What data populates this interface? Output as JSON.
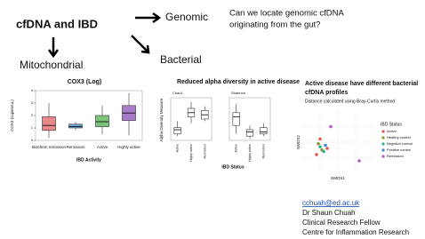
{
  "header": {
    "title": "cfDNA and IBD",
    "genomic": "Genomic",
    "question": [
      "Can we locate genomic cfDNA",
      "originating from the gut?"
    ],
    "mitochondrial": "Mitochondrial",
    "bacterial": "Bacterial"
  },
  "contact": [
    "cchuah@ed.ac.uk",
    "Dr Shaun Chuah",
    "Clinical Research Fellow",
    "Centre for Inflammation Research"
  ],
  "chart_data": [
    {
      "type": "box",
      "title": "COX3 (Log)",
      "y_label": "COX3 (copies/uL)",
      "x_label": "IBD Activity",
      "ylim": [
        0,
        4
      ],
      "yticks": [
        0,
        1,
        2,
        3,
        4
      ],
      "panels": [
        {
          "categories": [
            "Biochem remission",
            "Remission",
            "Active",
            "Highly active"
          ],
          "colors": [
            "#e8888a",
            "#6fa4d8",
            "#7cc47c",
            "#a77cc9"
          ],
          "boxes": [
            {
              "low": 0.2,
              "q1": 0.8,
              "median": 1.2,
              "q3": 1.9,
              "high": 3.0
            },
            {
              "low": 0.8,
              "q1": 1.0,
              "median": 1.1,
              "q3": 1.3,
              "high": 1.5
            },
            {
              "low": 0.5,
              "q1": 1.1,
              "median": 1.5,
              "q3": 2.0,
              "high": 2.8
            },
            {
              "low": 0.4,
              "q1": 1.6,
              "median": 2.2,
              "q3": 2.8,
              "high": 3.8
            }
          ]
        }
      ]
    },
    {
      "type": "box",
      "title": "Reduced alpha diversity in active disease",
      "y_label": "Alpha Diversity Measure",
      "x_label": "IBD Status",
      "ylim": [
        0,
        10
      ],
      "panels": [
        {
          "title": "Chao1",
          "categories": [
            "Active",
            "Highly active",
            "Remission"
          ],
          "colors": [
            "#ffffff",
            "#ffffff",
            "#ffffff"
          ],
          "boxes": [
            {
              "low": 1.0,
              "q1": 1.5,
              "median": 2.5,
              "q3": 3.0,
              "high": 4.5
            },
            {
              "low": 4.0,
              "q1": 5.5,
              "median": 6.5,
              "q3": 7.5,
              "high": 9.0
            },
            {
              "low": 4.5,
              "q1": 5.0,
              "median": 6.0,
              "q3": 7.0,
              "high": 8.0
            }
          ]
        },
        {
          "title": "Shannon",
          "categories": [
            "Active",
            "Highly active",
            "Remission"
          ],
          "colors": [
            "#ffffff",
            "#ffffff",
            "#ffffff"
          ],
          "boxes": [
            {
              "low": 1.5,
              "q1": 3.5,
              "median": 5.5,
              "q3": 6.5,
              "high": 8.5
            },
            {
              "low": 0.5,
              "q1": 1.0,
              "median": 2.0,
              "q3": 2.5,
              "high": 3.5
            },
            {
              "low": 1.0,
              "q1": 1.5,
              "median": 2.0,
              "q3": 3.0,
              "high": 4.0
            }
          ]
        }
      ]
    },
    {
      "type": "scatter",
      "title": [
        "Active disease have different bacterial",
        "cfDNA profiles"
      ],
      "subtitle": "Distance calculated using Bray-Curtis method",
      "x_label": "NMDS1",
      "y_label": "NMDS2",
      "legend_title": "IBD Status",
      "xlim": [
        -1,
        1
      ],
      "ylim": [
        -1,
        1
      ],
      "grid": true,
      "series": [
        {
          "name": "Active",
          "color": "#e05a4f",
          "x": [
            -0.5,
            -0.3,
            -0.6
          ],
          "y": [
            0.1,
            -0.2,
            -0.4
          ]
        },
        {
          "name": "Healthy control",
          "color": "#8a9a2a",
          "x": [
            -0.55,
            -0.45
          ],
          "y": [
            -0.05,
            -0.25
          ]
        },
        {
          "name": "Negative control",
          "color": "#2db08a",
          "x": [
            -0.5,
            -0.4
          ],
          "y": [
            -0.15,
            -0.3
          ]
        },
        {
          "name": "Positive control",
          "color": "#3a8fd8",
          "x": [
            -0.35
          ],
          "y": [
            -0.1
          ]
        },
        {
          "name": "Remission",
          "color": "#b45ad0",
          "x": [
            0.6,
            -0.2
          ],
          "y": [
            -0.6,
            0.5
          ]
        }
      ]
    }
  ]
}
